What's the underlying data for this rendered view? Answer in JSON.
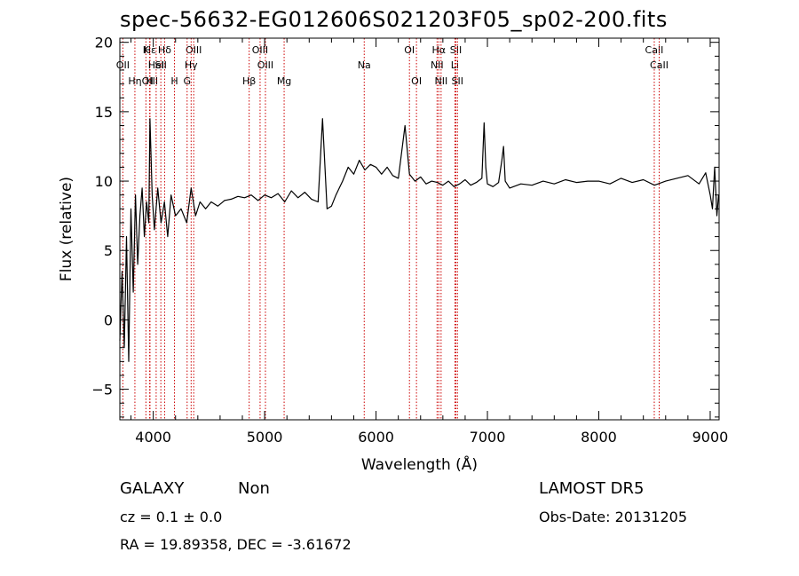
{
  "title": "spec-56632-EG012606S021203F05_sp02-200.fits",
  "footer": {
    "object_class": "GALAXY",
    "subclass": "Non",
    "survey": "LAMOST DR5",
    "redshift": "cz = 0.1 ± 0.0",
    "obs_date": "Obs-Date: 20131205",
    "coords": "RA =  19.89358, DEC =  -3.61672"
  },
  "chart_data": {
    "type": "line",
    "title": "spec-56632-EG012606S021203F05_sp02-200.fits",
    "xlabel": "Wavelength (Å)",
    "ylabel": "Flux (relative)",
    "xlim": [
      3700,
      9080
    ],
    "ylim": [
      -7.2,
      20.3
    ],
    "xticks": [
      4000,
      5000,
      6000,
      7000,
      8000,
      9000
    ],
    "yticks": [
      -5,
      0,
      5,
      10,
      15,
      20
    ],
    "grid": false,
    "line_color": "#000000",
    "marker_color": "#cc0000",
    "series": [
      {
        "x": [
          3700,
          3720,
          3740,
          3760,
          3780,
          3800,
          3820,
          3840,
          3860,
          3880,
          3900,
          3920,
          3940,
          3960,
          3970,
          3990,
          4010,
          4040,
          4070,
          4100,
          4130,
          4160,
          4200,
          4250,
          4300,
          4340,
          4380,
          4420,
          4470,
          4520,
          4580,
          4640,
          4700,
          4760,
          4820,
          4880,
          4940,
          5000,
          5060,
          5120,
          5180,
          5240,
          5300,
          5360,
          5420,
          5480,
          5520,
          5560,
          5600,
          5640,
          5700,
          5750,
          5800,
          5850,
          5900,
          5950,
          6000,
          6050,
          6100,
          6150,
          6200,
          6260,
          6300,
          6350,
          6400,
          6450,
          6500,
          6550,
          6600,
          6650,
          6700,
          6750,
          6800,
          6850,
          6900,
          6950,
          6970,
          6985,
          7000,
          7050,
          7100,
          7130,
          7145,
          7160,
          7200,
          7300,
          7400,
          7500,
          7600,
          7700,
          7800,
          7900,
          8000,
          8100,
          8200,
          8300,
          8400,
          8500,
          8600,
          8700,
          8800,
          8900,
          8960,
          9000,
          9020,
          9040,
          9060,
          9075
        ],
        "y": [
          -1.5,
          3.5,
          -2.0,
          6.0,
          -3.0,
          8.0,
          2.0,
          9.0,
          4.0,
          7.5,
          9.5,
          6.0,
          8.5,
          7.0,
          14.5,
          9.0,
          6.5,
          9.5,
          7.0,
          8.5,
          6.0,
          9.0,
          7.5,
          8.0,
          7.0,
          9.5,
          7.5,
          8.5,
          8.0,
          8.5,
          8.2,
          8.6,
          8.7,
          8.9,
          8.8,
          9.0,
          8.6,
          9.0,
          8.8,
          9.1,
          8.5,
          9.3,
          8.8,
          9.2,
          8.7,
          8.5,
          14.5,
          8.0,
          8.2,
          9.0,
          10.0,
          11.0,
          10.5,
          11.5,
          10.8,
          11.2,
          11.0,
          10.5,
          11.0,
          10.4,
          10.2,
          14.0,
          10.5,
          10.0,
          10.3,
          9.8,
          10.0,
          9.9,
          9.7,
          10.0,
          9.6,
          9.8,
          10.1,
          9.7,
          9.9,
          10.2,
          14.2,
          11.0,
          9.8,
          9.6,
          9.9,
          11.5,
          12.5,
          10.0,
          9.5,
          9.8,
          9.7,
          10.0,
          9.8,
          10.1,
          9.9,
          10.0,
          10.0,
          9.8,
          10.2,
          9.9,
          10.1,
          9.7,
          10.0,
          10.2,
          10.4,
          9.8,
          10.6,
          9.0,
          8.0,
          11.0,
          7.5,
          9.0
        ]
      }
    ],
    "lines": [
      {
        "label": "OII",
        "wave": 3727,
        "row": 1
      },
      {
        "label": "OIII",
        "wave": 3970,
        "row": 2
      },
      {
        "label": "Hε",
        "wave": 3970,
        "row": 0
      },
      {
        "label": "K",
        "wave": 3934,
        "row": 0
      },
      {
        "label": "H",
        "wave": 3968,
        "row": 2
      },
      {
        "label": "Hδ",
        "wave": 4102,
        "row": 0
      },
      {
        "label": "HeI",
        "wave": 4026,
        "row": 1
      },
      {
        "label": "Hη",
        "wave": 3835,
        "row": 2
      },
      {
        "label": "SII",
        "wave": 4068,
        "row": 1
      },
      {
        "label": "H",
        "wave": 4190,
        "row": 2
      },
      {
        "label": "OIII",
        "wave": 4363,
        "row": 0
      },
      {
        "label": "Hγ",
        "wave": 4340,
        "row": 1
      },
      {
        "label": "G",
        "wave": 4304,
        "row": 2
      },
      {
        "label": "OIII",
        "wave": 4959,
        "row": 0
      },
      {
        "label": "OIII",
        "wave": 5007,
        "row": 1
      },
      {
        "label": "Hβ",
        "wave": 4861,
        "row": 2
      },
      {
        "label": "Mg",
        "wave": 5175,
        "row": 2
      },
      {
        "label": "Na",
        "wave": 5894,
        "row": 1
      },
      {
        "label": "OI",
        "wave": 6300,
        "row": 0
      },
      {
        "label": "OI",
        "wave": 6363,
        "row": 2
      },
      {
        "label": "Hα",
        "wave": 6563,
        "row": 0
      },
      {
        "label": "NII",
        "wave": 6548,
        "row": 1
      },
      {
        "label": "NII",
        "wave": 6584,
        "row": 2
      },
      {
        "label": "SII",
        "wave": 6717,
        "row": 0
      },
      {
        "label": "Li",
        "wave": 6708,
        "row": 1
      },
      {
        "label": "SII",
        "wave": 6731,
        "row": 2
      },
      {
        "label": "CaII",
        "wave": 8498,
        "row": 0
      },
      {
        "label": "CaII",
        "wave": 8542,
        "row": 1
      }
    ]
  }
}
